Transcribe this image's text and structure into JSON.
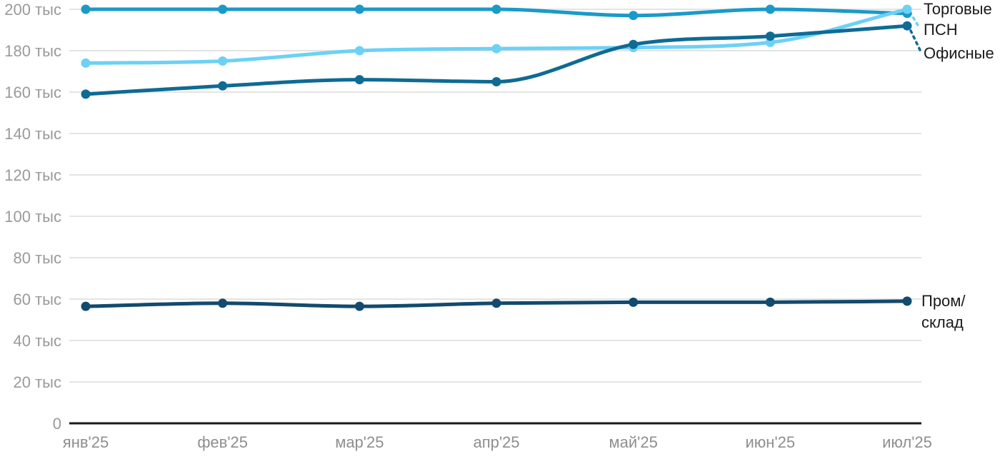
{
  "chart_data": {
    "type": "line",
    "title": "",
    "unit": "тыс",
    "categories": [
      "янв'25",
      "фев'25",
      "мар'25",
      "апр'25",
      "май'25",
      "июн'25",
      "июл'25"
    ],
    "series": [
      {
        "name": "Торговые",
        "color": "#1b9ac8",
        "values": [
          200,
          200,
          200,
          200,
          197,
          200,
          198
        ]
      },
      {
        "name": "ПСН",
        "color": "#6cd1f5",
        "values": [
          174,
          175,
          180,
          181,
          181.5,
          184,
          200
        ]
      },
      {
        "name": "Офисные",
        "color": "#0e6b94",
        "values": [
          159,
          163,
          166,
          165,
          183,
          187,
          192
        ]
      },
      {
        "name": "Пром/склад",
        "color": "#134a6e",
        "values": [
          56.5,
          58,
          56.5,
          58,
          58.5,
          58.5,
          59
        ],
        "label_lines": [
          "Пром/",
          "склад"
        ]
      }
    ],
    "ylim": [
      0,
      200
    ],
    "y_ticks": [
      {
        "value": 0,
        "label": "0"
      },
      {
        "value": 20,
        "label": "20 тыс"
      },
      {
        "value": 40,
        "label": "40 тыс"
      },
      {
        "value": 60,
        "label": "60 тыс"
      },
      {
        "value": 80,
        "label": "80 тыс"
      },
      {
        "value": 100,
        "label": "100 тыс"
      },
      {
        "value": 120,
        "label": "120 тыс"
      },
      {
        "value": 140,
        "label": "140 тыс"
      },
      {
        "value": 160,
        "label": "160 тыс"
      },
      {
        "value": 180,
        "label": "180 тыс"
      },
      {
        "value": 200,
        "label": "200 тыс"
      }
    ],
    "grid": true,
    "legend_position": "direct-labels-right"
  },
  "style": {
    "background": "#ffffff",
    "grid_color": "#e4e4e4",
    "axis_color": "#1a1a1a",
    "y_tick_color": "#9a9a9a",
    "x_tick_color": "#8e8e8e",
    "label_color": "#1a1a1a"
  }
}
